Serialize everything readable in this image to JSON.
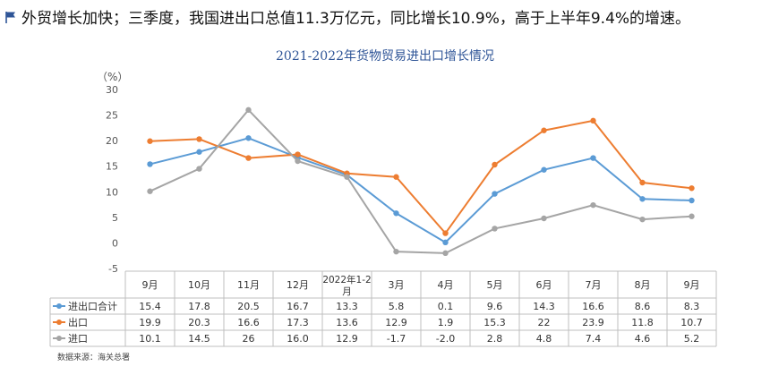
{
  "headline": "外贸增长加快；三季度，我国进出口总值11.3万亿元，同比增长10.9%，高于上半年9.4%的增速。",
  "source": "数据来源：海关总署",
  "colors": {
    "total": "#5b9bd5",
    "export": "#ed7d31",
    "import": "#a5a5a5",
    "flag": "#2f5597",
    "title": "#2f5597"
  },
  "chart_data": {
    "type": "line",
    "title": "2021-2022年货物贸易进出口增长情况",
    "unit": "（%）",
    "ylim": [
      -5,
      30
    ],
    "yticks": [
      -5,
      0,
      5,
      10,
      15,
      20,
      25,
      30
    ],
    "grid": false,
    "legend": "table-left",
    "categories": [
      "9月",
      "10月",
      "11月",
      "12月",
      "2022年1-2月",
      "3月",
      "4月",
      "5月",
      "6月",
      "7月",
      "8月",
      "9月"
    ],
    "series": [
      {
        "name": "进出口合计",
        "key": "total",
        "values": [
          15.4,
          17.8,
          20.5,
          16.7,
          13.3,
          5.8,
          0.1,
          9.6,
          14.3,
          16.6,
          8.6,
          8.3
        ],
        "labels": [
          "15.4",
          "17.8",
          "20.5",
          "16.7",
          "13.3",
          "5.8",
          "0.1",
          "9.6",
          "14.3",
          "16.6",
          "8.6",
          "8.3"
        ]
      },
      {
        "name": "出口",
        "key": "export",
        "values": [
          19.9,
          20.3,
          16.6,
          17.3,
          13.6,
          12.9,
          1.9,
          15.3,
          22,
          23.9,
          11.8,
          10.7
        ],
        "labels": [
          "19.9",
          "20.3",
          "16.6",
          "17.3",
          "13.6",
          "12.9",
          "1.9",
          "15.3",
          "22",
          "23.9",
          "11.8",
          "10.7"
        ]
      },
      {
        "name": "进口",
        "key": "import",
        "values": [
          10.1,
          14.5,
          26,
          16.0,
          12.9,
          -1.7,
          -2.0,
          2.8,
          4.8,
          7.4,
          4.6,
          5.2
        ],
        "labels": [
          "10.1",
          "14.5",
          "26",
          "16.0",
          "12.9",
          "-1.7",
          "-2.0",
          "2.8",
          "4.8",
          "7.4",
          "4.6",
          "5.2"
        ]
      }
    ]
  }
}
